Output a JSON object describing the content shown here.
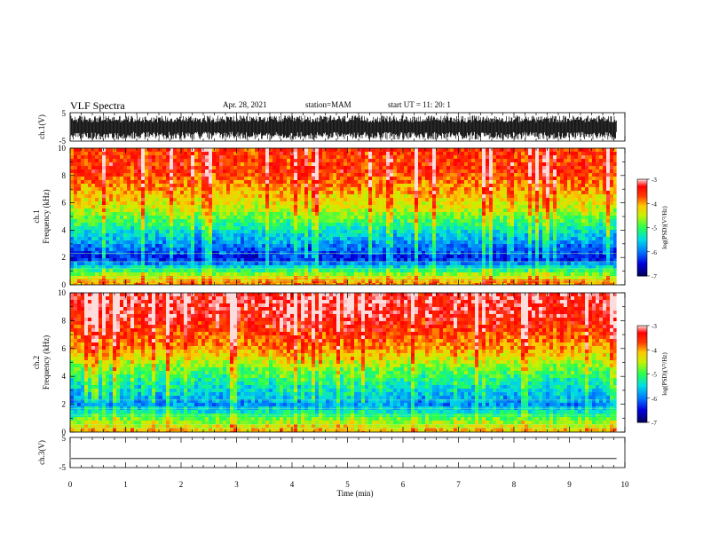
{
  "header": {
    "title": "VLF Spectra",
    "date": "Apr. 28, 2021",
    "station": "station=MAM",
    "start": "start  UT  =    11: 20: 1"
  },
  "chart_data": [
    {
      "type": "line",
      "panel": "ch1-waveform",
      "ylabel": "ch.1(V)",
      "ylim": [
        -5,
        5
      ],
      "yticks": [
        "5",
        "-5"
      ],
      "xlim": [
        0,
        10
      ],
      "description_values": {
        "typical_range_V": [
          -4.5,
          4.0
        ]
      }
    },
    {
      "type": "heatmap",
      "panel": "ch1-spectrogram",
      "ylabel": "ch.1\nFrequency (kHz)",
      "ylim": [
        0,
        10
      ],
      "yticks": [
        "0",
        "2",
        "4",
        "6",
        "8",
        "10"
      ],
      "xlim": [
        0,
        9.85
      ],
      "colorbar": {
        "label": "log(PSD)(V²/Hz)",
        "range": [
          -7,
          -3
        ],
        "ticks": [
          "-3",
          "-4",
          "-5",
          "-6",
          "-7"
        ]
      },
      "levels": [
        {
          "band_kHz": [
            0,
            0.6
          ],
          "logpsd": -4.0
        },
        {
          "band_kHz": [
            0.6,
            3.2
          ],
          "logpsd": -6.4
        },
        {
          "band_kHz": [
            3.2,
            4.5
          ],
          "logpsd": -5.5
        },
        {
          "band_kHz": [
            4.5,
            6.5
          ],
          "logpsd": -4.5
        },
        {
          "band_kHz": [
            6.5,
            10
          ],
          "logpsd": -3.6
        }
      ]
    },
    {
      "type": "heatmap",
      "panel": "ch2-spectrogram",
      "ylabel": "ch.2\nFrequency (kHz)",
      "ylim": [
        0,
        10
      ],
      "yticks": [
        "0",
        "2",
        "4",
        "6",
        "8",
        "10"
      ],
      "xlim": [
        0,
        9.85
      ],
      "colorbar": {
        "label": "log(PSD)(V²/Hz)",
        "range": [
          -7,
          -3
        ],
        "ticks": [
          "-3",
          "-4",
          "-5",
          "-6",
          "-7"
        ]
      },
      "levels": [
        {
          "band_kHz": [
            0,
            0.5
          ],
          "logpsd": -4.2
        },
        {
          "band_kHz": [
            0.5,
            3.5
          ],
          "logpsd": -5.9
        },
        {
          "band_kHz": [
            3.5,
            5.0
          ],
          "logpsd": -5.0
        },
        {
          "band_kHz": [
            5.0,
            7.0
          ],
          "logpsd": -4.0
        },
        {
          "band_kHz": [
            7.0,
            10
          ],
          "logpsd": -3.3
        }
      ]
    },
    {
      "type": "line",
      "panel": "ch3-waveform",
      "ylabel": "ch.3(V)",
      "ylim": [
        -5,
        5
      ],
      "yticks": [
        "5",
        "-5"
      ],
      "xlim": [
        0,
        10
      ],
      "values": {
        "constant_V": -2
      }
    }
  ],
  "xaxis": {
    "label": "Time  (min)",
    "ticks": [
      "0",
      "1",
      "2",
      "3",
      "4",
      "5",
      "6",
      "7",
      "8",
      "9",
      "10"
    ]
  },
  "colors": {
    "colormap": [
      "#000070",
      "#0000ff",
      "#00b0ff",
      "#00ff60",
      "#ffff00",
      "#ff0000",
      "#ffffff"
    ]
  }
}
